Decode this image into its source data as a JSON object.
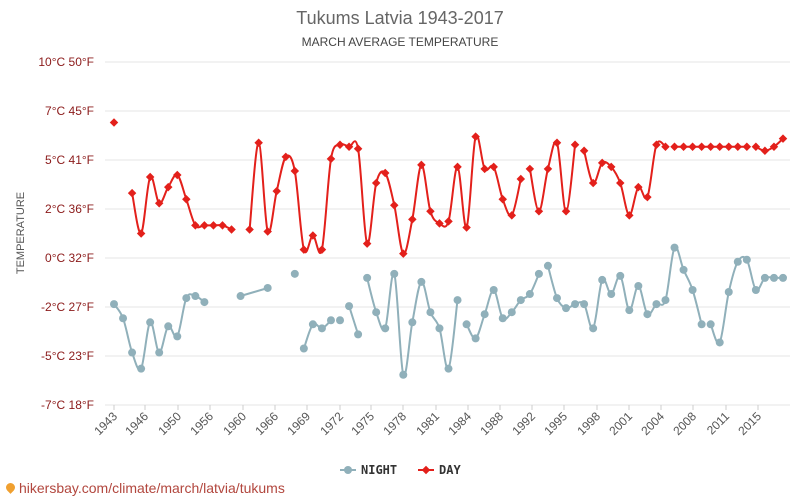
{
  "chart_data": {
    "type": "line",
    "title": "Tukums Latvia 1943-2017",
    "subtitle": "MARCH AVERAGE TEMPERATURE",
    "ylabel": "TEMPERATURE",
    "xlabel": "",
    "xlim": [
      1943,
      2017
    ],
    "ylim": [
      -7,
      10
    ],
    "y_ticks": [
      {
        "value": 10,
        "label": "10°C 50°F"
      },
      {
        "value": 7.5,
        "label": "7°C 45°F"
      },
      {
        "value": 5,
        "label": "5°C 41°F"
      },
      {
        "value": 2.5,
        "label": "2°C 36°F"
      },
      {
        "value": 0,
        "label": "0°C 32°F"
      },
      {
        "value": -2.5,
        "label": "-2°C 27°F"
      },
      {
        "value": -5,
        "label": "-5°C 23°F"
      },
      {
        "value": -7.5,
        "label": "-7°C 18°F"
      }
    ],
    "x_ticks": [
      "1943",
      "1946",
      "1950",
      "1956",
      "1960",
      "1966",
      "1969",
      "1972",
      "1975",
      "1978",
      "1981",
      "1984",
      "1988",
      "1992",
      "1995",
      "1998",
      "2001",
      "2004",
      "2008",
      "2011",
      "2015"
    ],
    "grid": true,
    "legend": "bottom",
    "series": [
      {
        "name": "NIGHT",
        "color": "#90b0ba",
        "x": [
          1943,
          1944,
          1945,
          1946,
          1947,
          1948,
          1949,
          1950,
          1951,
          1952,
          1953,
          1957,
          1960,
          1963,
          1964,
          1965,
          1966,
          1967,
          1968,
          1969,
          1970,
          1971,
          1972,
          1973,
          1974,
          1975,
          1976,
          1977,
          1978,
          1979,
          1980,
          1981,
          1982,
          1983,
          1984,
          1985,
          1986,
          1987,
          1988,
          1989,
          1990,
          1991,
          1992,
          1993,
          1994,
          1995,
          1996,
          1997,
          1998,
          1999,
          2000,
          2001,
          2002,
          2003,
          2004,
          2005,
          2006,
          2007,
          2008,
          2009,
          2010,
          2011,
          2012,
          2013,
          2014,
          2015,
          2016,
          2017
        ],
        "values": [
          -2.0,
          -2.7,
          -4.4,
          -5.2,
          -2.9,
          -4.4,
          -3.1,
          -3.6,
          -1.7,
          -1.6,
          -1.9,
          -1.6,
          -1.2,
          -0.5,
          -4.2,
          -3.0,
          -3.2,
          -2.8,
          -2.8,
          -2.1,
          -3.5,
          -0.7,
          -2.4,
          -3.2,
          -0.5,
          -5.5,
          -2.9,
          -0.9,
          -2.4,
          -3.2,
          -5.2,
          -1.8,
          -3.0,
          -3.7,
          -2.5,
          -1.3,
          -2.7,
          -2.4,
          -1.8,
          -1.5,
          -0.5,
          -0.1,
          -1.7,
          -2.2,
          -2.0,
          -2.0,
          -3.2,
          -0.8,
          -1.5,
          -0.6,
          -2.3,
          -1.1,
          -2.5,
          -2.0,
          -1.8,
          0.8,
          -0.3,
          -1.3,
          -3.0,
          -3.0,
          -3.9,
          -1.4,
          0.1,
          0.2,
          -1.3,
          -0.7,
          -0.7,
          -0.7
        ],
        "segments": [
          [
            0,
            10
          ],
          [
            11,
            12
          ],
          [
            14,
            17
          ],
          [
            19,
            20
          ],
          [
            21,
            31
          ],
          [
            32,
            40
          ],
          [
            41,
            58
          ],
          [
            59,
            67
          ]
        ]
      },
      {
        "name": "DAY",
        "color": "#e3201b",
        "x": [
          1943,
          1945,
          1946,
          1947,
          1948,
          1949,
          1950,
          1951,
          1952,
          1953,
          1954,
          1955,
          1956,
          1958,
          1959,
          1960,
          1961,
          1962,
          1963,
          1964,
          1965,
          1966,
          1967,
          1968,
          1969,
          1970,
          1971,
          1972,
          1973,
          1974,
          1975,
          1976,
          1977,
          1978,
          1979,
          1980,
          1981,
          1982,
          1983,
          1984,
          1985,
          1986,
          1987,
          1988,
          1989,
          1990,
          1991,
          1992,
          1993,
          1994,
          1995,
          1996,
          1997,
          1998,
          1999,
          2000,
          2001,
          2002,
          2003,
          2004,
          2005,
          2006,
          2007,
          2008,
          2009,
          2010,
          2011,
          2012,
          2013,
          2014,
          2015,
          2016,
          2017
        ],
        "values": [
          7.0,
          3.5,
          1.5,
          4.3,
          3.0,
          3.8,
          4.4,
          3.2,
          1.9,
          1.9,
          1.9,
          1.9,
          1.7,
          1.7,
          6.0,
          1.6,
          3.6,
          5.3,
          4.6,
          0.7,
          1.4,
          0.7,
          5.2,
          5.9,
          5.8,
          5.7,
          1.0,
          4.0,
          4.5,
          2.9,
          0.5,
          2.2,
          4.9,
          2.6,
          2.0,
          2.1,
          4.8,
          1.8,
          6.3,
          4.7,
          4.8,
          3.2,
          2.4,
          4.2,
          4.7,
          2.6,
          4.7,
          6.0,
          2.6,
          5.9,
          5.6,
          4.0,
          5.0,
          4.8,
          4.0,
          2.4,
          3.8,
          3.3,
          5.9,
          5.8,
          5.8,
          5.8,
          5.8,
          5.8,
          5.8,
          5.8,
          5.8,
          5.8,
          5.8,
          5.8,
          5.6,
          5.8,
          6.2
        ],
        "segments": [
          [
            0,
            0
          ],
          [
            1,
            12
          ],
          [
            13,
            43
          ],
          [
            44,
            49
          ],
          [
            50,
            59
          ],
          [
            60,
            68
          ],
          [
            69,
            72
          ]
        ]
      }
    ]
  },
  "watermark": "hikersbay.com/climate/march/latvia/tukums"
}
